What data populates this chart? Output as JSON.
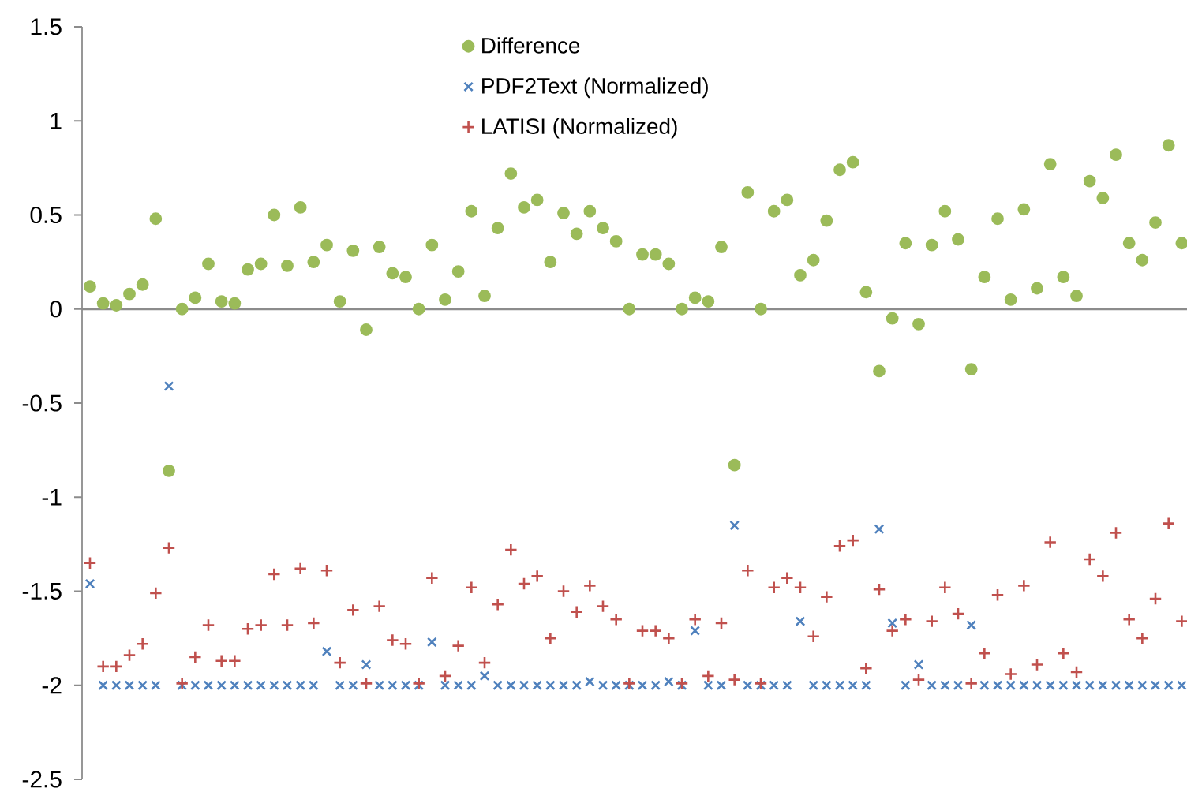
{
  "chart_data": {
    "type": "scatter",
    "categories": [
      null,
      null,
      null,
      null,
      null,
      null,
      null,
      null,
      null,
      null,
      null,
      null,
      null,
      null,
      null,
      null,
      null,
      null,
      null,
      null,
      null,
      null,
      null,
      null,
      null,
      null,
      null,
      null,
      null,
      null,
      null,
      null,
      null,
      null,
      null,
      null,
      null,
      null,
      null,
      null,
      null,
      null,
      null,
      null,
      null,
      null,
      null,
      null,
      null,
      null,
      null,
      null,
      null,
      null,
      null,
      null,
      null,
      null,
      null,
      null,
      null,
      null,
      null,
      null,
      null,
      null,
      null,
      null,
      null,
      null,
      null,
      null,
      null,
      null,
      null,
      null,
      null,
      null,
      null,
      null,
      null,
      null,
      null,
      null
    ],
    "ylim": [
      -2.5,
      1.5
    ],
    "yticks": [
      -2.5,
      -2,
      -1.5,
      -1,
      -0.5,
      0,
      0.5,
      1,
      1.5
    ],
    "legend": "top",
    "series": [
      {
        "name": "Difference",
        "color": "#9bbb59",
        "marker": "circle",
        "values": [
          0.12,
          0.03,
          0.02,
          0.08,
          0.13,
          0.48,
          -0.86,
          0.0,
          0.06,
          0.24,
          0.04,
          0.03,
          0.21,
          0.24,
          0.5,
          0.23,
          0.54,
          0.25,
          0.34,
          0.04,
          0.31,
          -0.11,
          0.33,
          0.19,
          0.17,
          0.0,
          0.34,
          0.05,
          0.2,
          0.52,
          0.07,
          0.43,
          0.72,
          0.54,
          0.58,
          0.25,
          0.51,
          0.4,
          0.52,
          0.43,
          0.36,
          0.0,
          0.29,
          0.29,
          0.24,
          0.0,
          0.06,
          0.04,
          0.33,
          -0.83,
          0.62,
          0.0,
          0.52,
          0.58,
          0.18,
          0.26,
          0.47,
          0.74,
          0.78,
          0.09,
          -0.33,
          -0.05,
          0.35,
          -0.08,
          0.34,
          0.52,
          0.37,
          -0.32,
          0.17,
          0.48,
          0.05,
          0.53,
          0.11,
          0.77,
          0.17,
          0.07,
          0.68,
          0.59,
          0.82,
          0.35,
          0.26,
          0.46,
          0.87,
          0.35
        ]
      },
      {
        "name": "PDF2Text (Normalized)",
        "color": "#4f81bd",
        "marker": "cross",
        "values": [
          -1.46,
          -2,
          -2,
          -2,
          -2,
          -2,
          -0.41,
          -2,
          -2,
          -2,
          -2,
          -2,
          -2,
          -2,
          -2,
          -2,
          -2,
          -2,
          -1.82,
          -2,
          -2,
          -1.89,
          -2,
          -2,
          -2,
          -2,
          -1.77,
          -2,
          -2,
          -2,
          -1.95,
          -2,
          -2,
          -2,
          -2,
          -2,
          -2,
          -2,
          -1.98,
          -2,
          -2,
          -2,
          -2,
          -2,
          -1.98,
          -2,
          -1.71,
          -2,
          -2,
          -1.15,
          -2,
          -2,
          -2,
          -2,
          -1.66,
          -2,
          -2,
          -2,
          -2,
          -2,
          -1.17,
          -1.67,
          -2,
          -1.89,
          -2,
          -2,
          -2,
          -1.68,
          -2,
          -2,
          -2,
          -2,
          -2,
          -2,
          -2,
          -2,
          -2,
          -2,
          -2,
          -2,
          -2,
          -2,
          -2,
          -2
        ]
      },
      {
        "name": "LATISI (Normalized)",
        "color": "#c0504d",
        "marker": "plus",
        "values": [
          -1.35,
          -1.9,
          -1.9,
          -1.84,
          -1.78,
          -1.51,
          -1.27,
          -1.99,
          -1.85,
          -1.68,
          -1.87,
          -1.87,
          -1.7,
          -1.68,
          -1.41,
          -1.68,
          -1.38,
          -1.67,
          -1.39,
          -1.88,
          -1.6,
          -1.99,
          -1.58,
          -1.76,
          -1.78,
          -1.99,
          -1.43,
          -1.95,
          -1.79,
          -1.48,
          -1.88,
          -1.57,
          -1.28,
          -1.46,
          -1.42,
          -1.75,
          -1.5,
          -1.61,
          -1.47,
          -1.58,
          -1.65,
          -1.99,
          -1.71,
          -1.71,
          -1.75,
          -1.99,
          -1.65,
          -1.95,
          -1.67,
          -1.97,
          -1.39,
          -1.99,
          -1.48,
          -1.43,
          -1.48,
          -1.74,
          -1.53,
          -1.26,
          -1.23,
          -1.91,
          -1.49,
          -1.71,
          -1.65,
          -1.97,
          -1.66,
          -1.48,
          -1.62,
          -1.99,
          -1.83,
          -1.52,
          -1.94,
          -1.47,
          -1.89,
          -1.24,
          -1.83,
          -1.93,
          -1.33,
          -1.42,
          -1.19,
          -1.65,
          -1.75,
          -1.54,
          -1.14,
          -1.66
        ]
      }
    ]
  }
}
